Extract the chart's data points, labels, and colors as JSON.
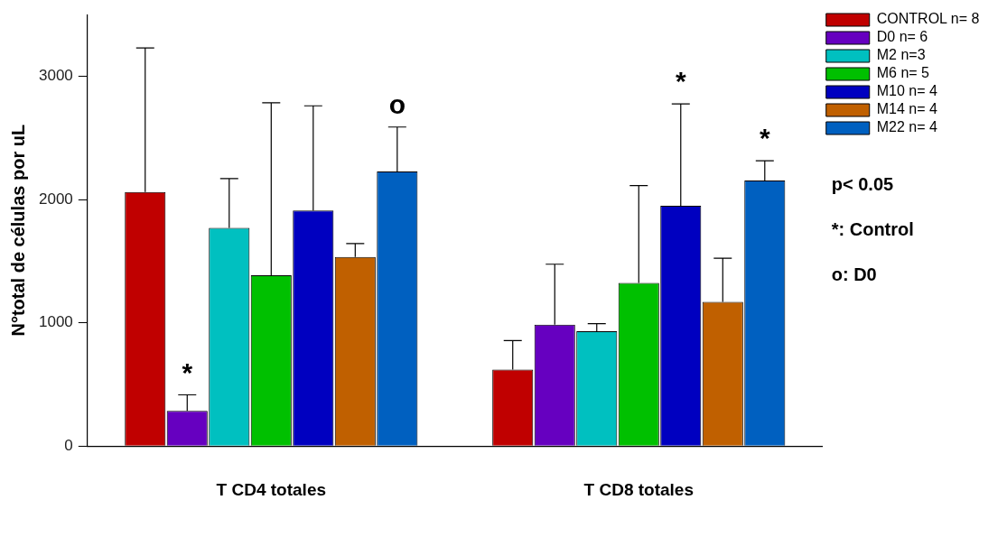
{
  "chart_data": {
    "type": "bar",
    "ylabel": "N°total de células por uL",
    "categories": [
      "T CD4 totales",
      "T CD8 totales"
    ],
    "series": [
      {
        "name": "CONTROL n= 8",
        "color": "#c00000",
        "values": [
          2060,
          620
        ],
        "errors": [
          1170,
          235
        ]
      },
      {
        "name": "D0 n= 6",
        "color": "#6600c0",
        "values": [
          285,
          985
        ],
        "errors": [
          130,
          490
        ]
      },
      {
        "name": "M2 n=3",
        "color": "#00c0c0",
        "values": [
          1770,
          932
        ],
        "errors": [
          400,
          60
        ]
      },
      {
        "name": "M6 n= 5",
        "color": "#00c000",
        "values": [
          1385,
          1323
        ],
        "errors": [
          1400,
          790
        ]
      },
      {
        "name": "M10 n= 4",
        "color": "#0000c0",
        "values": [
          1910,
          1950
        ],
        "errors": [
          850,
          825
        ]
      },
      {
        "name": "M14 n= 4",
        "color": "#c06000",
        "values": [
          1533,
          1169
        ],
        "errors": [
          110,
          355
        ]
      },
      {
        "name": "M22 n= 4",
        "color": "#0060c0",
        "values": [
          2228,
          2155
        ],
        "errors": [
          360,
          160
        ]
      }
    ],
    "ylim": [
      0,
      3500
    ],
    "yticks": [
      0,
      1000,
      2000,
      3000
    ],
    "grid": false,
    "legend": "right",
    "annotations": [
      "*",
      "o",
      "*",
      "*",
      "p< 0.05",
      "*: Control",
      "o: D0"
    ]
  }
}
